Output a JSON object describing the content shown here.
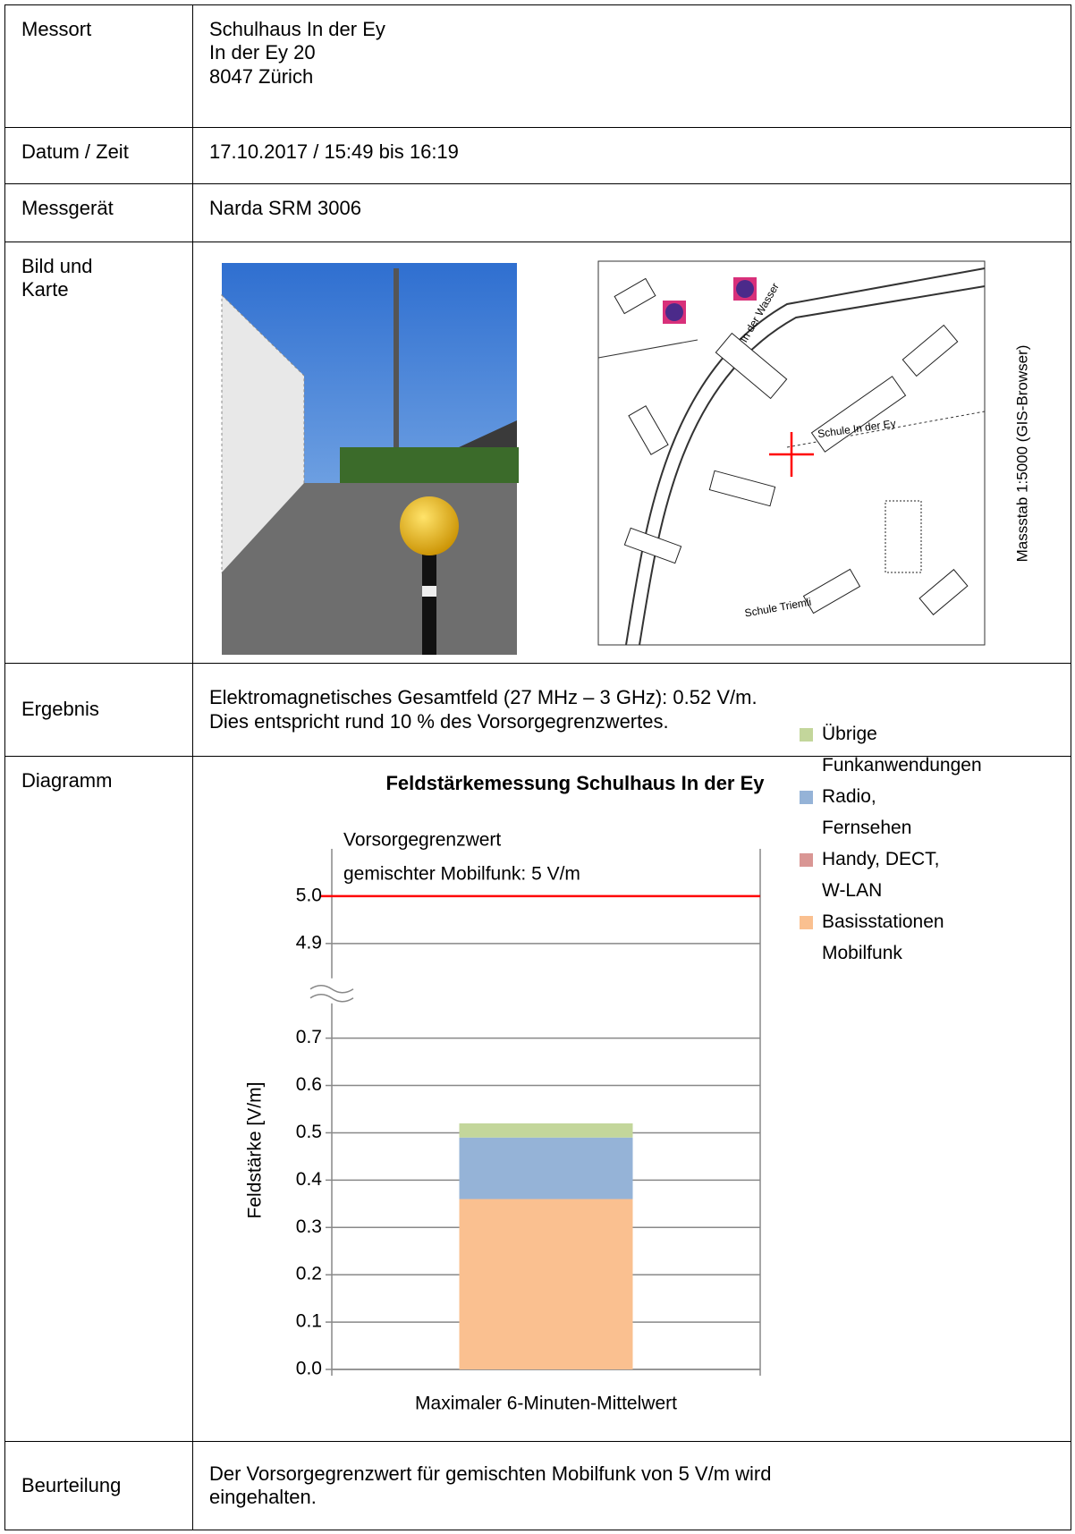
{
  "rows": [
    {
      "label": [
        "Messort"
      ],
      "content": [
        "Schulhaus In der Ey",
        "In der Ey 20",
        "8047 Zürich"
      ]
    },
    {
      "label": [
        "Datum / Zeit"
      ],
      "content": [
        "17.10.2017 / 15:49 bis 16:19"
      ]
    },
    {
      "label": [
        "Messgerät"
      ],
      "content": [
        "Narda SRM 3006"
      ]
    },
    {
      "label": [
        "Bild und",
        "Karte"
      ]
    },
    {
      "label": [
        "Ergebnis"
      ],
      "content": [
        "Elektromagnetisches Gesamtfeld (27 MHz – 3 GHz): 0.52 V/m.",
        "Dies entspricht rund 10 % des Vorsorgegrenzwertes."
      ]
    },
    {
      "label": [
        "Diagramm"
      ]
    },
    {
      "label": [
        "Beurteilung"
      ],
      "content": [
        "Der Vorsorgegrenzwert für gemischten Mobilfunk von 5 V/m wird",
        "eingehalten."
      ]
    }
  ],
  "map": {
    "caption": "Massstab 1:5000 (GIS-Browser)",
    "labels": [
      "Schule In der Ey",
      "Schule Triemli",
      "In der Wasser"
    ]
  },
  "chart_data": {
    "type": "stacked_bar",
    "title": "Feldstärkemessung Schulhaus In der Ey",
    "y_label": "Feldstärke [V/m]",
    "categories": [
      "Maximaler 6-Minuten-Mittelwert"
    ],
    "series": [
      {
        "name": "Basisstationen\nMobilfunk",
        "color": "#fac090",
        "values": [
          0.36
        ]
      },
      {
        "name": "Handy, DECT,\nW-LAN",
        "color": "#d99694",
        "values": [
          0
        ]
      },
      {
        "name": "Radio,\nFernsehen",
        "color": "#95b3d7",
        "values": [
          0.13
        ]
      },
      {
        "name": "Übrige\nFunkanwendungen",
        "color": "#c3d69b",
        "values": [
          0.03
        ]
      }
    ],
    "ylim": [
      0,
      5.1
    ],
    "yticks": [
      {
        "value": 0,
        "label": "0.0"
      },
      0.1,
      0.2,
      0.3,
      0.4,
      0.5,
      0.6,
      0.7,
      4.9,
      {
        "value": 5,
        "label": "5.0"
      }
    ],
    "axis_break": [
      0.8,
      4.8
    ],
    "limit": {
      "value": 5,
      "color": "#ff0000",
      "label": [
        "Vorsorgegrenzwert",
        "gemischter Mobilfunk: 5 V/m"
      ]
    },
    "grid": true,
    "legend": "right"
  }
}
